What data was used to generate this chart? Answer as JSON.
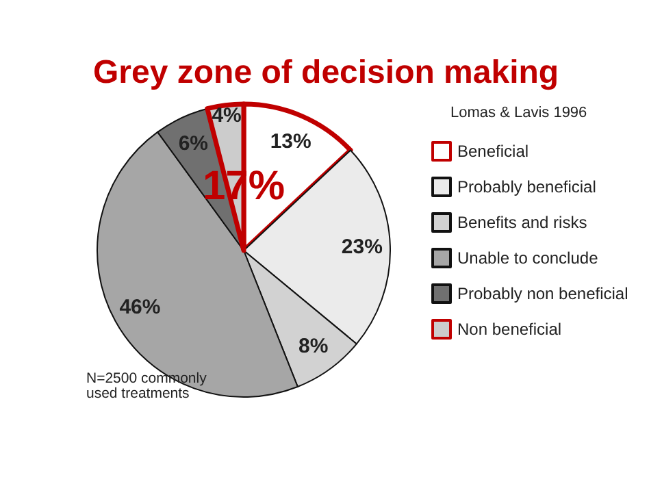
{
  "chart_data": {
    "type": "pie",
    "title": "Grey zone of decision making",
    "subtitle": "Lomas & Lavis 1996",
    "categories": [
      "Beneficial",
      "Probably beneficial",
      "Benefits and risks",
      "Unable to conclude",
      "Probably non beneficial",
      "Non beneficial"
    ],
    "values": [
      13,
      23,
      8,
      46,
      6,
      4
    ],
    "colors": [
      "#ffffff",
      "#ebebeb",
      "#d2d2d2",
      "#a6a6a6",
      "#707070",
      "#cccccc"
    ],
    "value_labels": [
      "13%",
      "23%",
      "8%",
      "46%",
      "6%",
      "4%"
    ],
    "legend": "right",
    "annotations": [
      "17%",
      "N=2500 commonly used treatments"
    ]
  }
}
